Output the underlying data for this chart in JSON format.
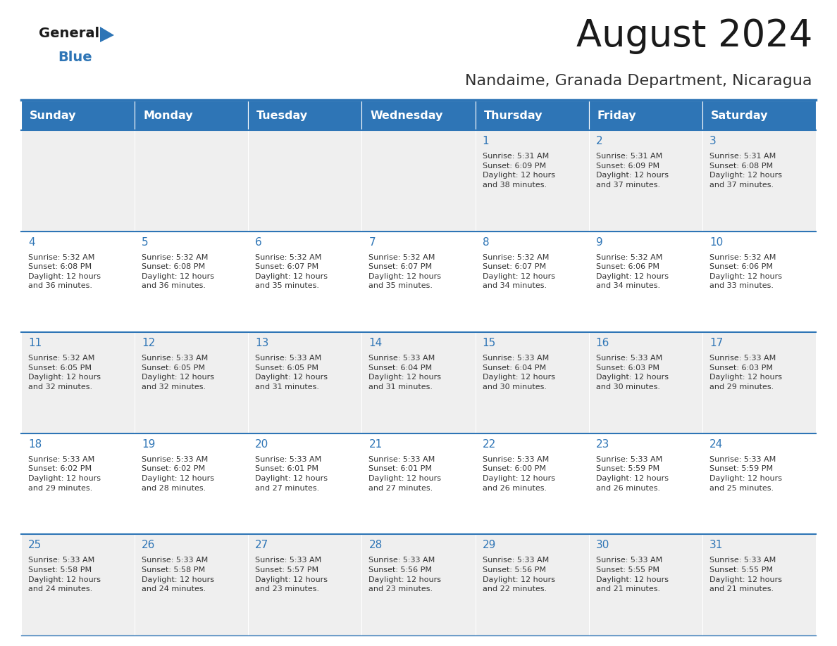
{
  "title": "August 2024",
  "subtitle": "Nandaime, Granada Department, Nicaragua",
  "header_bg_color": "#2E75B6",
  "header_text_color": "#FFFFFF",
  "day_names": [
    "Sunday",
    "Monday",
    "Tuesday",
    "Wednesday",
    "Thursday",
    "Friday",
    "Saturday"
  ],
  "row_odd_bg": "#EFEFEF",
  "row_even_bg": "#FFFFFF",
  "title_color": "#1a1a1a",
  "subtitle_color": "#333333",
  "day_number_color": "#2E75B6",
  "cell_text_color": "#333333",
  "separator_color": "#2E75B6",
  "logo_black": "#1a1a1a",
  "logo_blue": "#2E75B6",
  "logo_triangle": "#2E75B6",
  "calendar_data": [
    [
      null,
      null,
      null,
      null,
      {
        "day": 1,
        "sunrise": "5:31 AM",
        "sunset": "6:09 PM",
        "daylight": "12 hours and 38 minutes."
      },
      {
        "day": 2,
        "sunrise": "5:31 AM",
        "sunset": "6:09 PM",
        "daylight": "12 hours and 37 minutes."
      },
      {
        "day": 3,
        "sunrise": "5:31 AM",
        "sunset": "6:08 PM",
        "daylight": "12 hours and 37 minutes."
      }
    ],
    [
      {
        "day": 4,
        "sunrise": "5:32 AM",
        "sunset": "6:08 PM",
        "daylight": "12 hours and 36 minutes."
      },
      {
        "day": 5,
        "sunrise": "5:32 AM",
        "sunset": "6:08 PM",
        "daylight": "12 hours and 36 minutes."
      },
      {
        "day": 6,
        "sunrise": "5:32 AM",
        "sunset": "6:07 PM",
        "daylight": "12 hours and 35 minutes."
      },
      {
        "day": 7,
        "sunrise": "5:32 AM",
        "sunset": "6:07 PM",
        "daylight": "12 hours and 35 minutes."
      },
      {
        "day": 8,
        "sunrise": "5:32 AM",
        "sunset": "6:07 PM",
        "daylight": "12 hours and 34 minutes."
      },
      {
        "day": 9,
        "sunrise": "5:32 AM",
        "sunset": "6:06 PM",
        "daylight": "12 hours and 34 minutes."
      },
      {
        "day": 10,
        "sunrise": "5:32 AM",
        "sunset": "6:06 PM",
        "daylight": "12 hours and 33 minutes."
      }
    ],
    [
      {
        "day": 11,
        "sunrise": "5:32 AM",
        "sunset": "6:05 PM",
        "daylight": "12 hours and 32 minutes."
      },
      {
        "day": 12,
        "sunrise": "5:33 AM",
        "sunset": "6:05 PM",
        "daylight": "12 hours and 32 minutes."
      },
      {
        "day": 13,
        "sunrise": "5:33 AM",
        "sunset": "6:05 PM",
        "daylight": "12 hours and 31 minutes."
      },
      {
        "day": 14,
        "sunrise": "5:33 AM",
        "sunset": "6:04 PM",
        "daylight": "12 hours and 31 minutes."
      },
      {
        "day": 15,
        "sunrise": "5:33 AM",
        "sunset": "6:04 PM",
        "daylight": "12 hours and 30 minutes."
      },
      {
        "day": 16,
        "sunrise": "5:33 AM",
        "sunset": "6:03 PM",
        "daylight": "12 hours and 30 minutes."
      },
      {
        "day": 17,
        "sunrise": "5:33 AM",
        "sunset": "6:03 PM",
        "daylight": "12 hours and 29 minutes."
      }
    ],
    [
      {
        "day": 18,
        "sunrise": "5:33 AM",
        "sunset": "6:02 PM",
        "daylight": "12 hours and 29 minutes."
      },
      {
        "day": 19,
        "sunrise": "5:33 AM",
        "sunset": "6:02 PM",
        "daylight": "12 hours and 28 minutes."
      },
      {
        "day": 20,
        "sunrise": "5:33 AM",
        "sunset": "6:01 PM",
        "daylight": "12 hours and 27 minutes."
      },
      {
        "day": 21,
        "sunrise": "5:33 AM",
        "sunset": "6:01 PM",
        "daylight": "12 hours and 27 minutes."
      },
      {
        "day": 22,
        "sunrise": "5:33 AM",
        "sunset": "6:00 PM",
        "daylight": "12 hours and 26 minutes."
      },
      {
        "day": 23,
        "sunrise": "5:33 AM",
        "sunset": "5:59 PM",
        "daylight": "12 hours and 26 minutes."
      },
      {
        "day": 24,
        "sunrise": "5:33 AM",
        "sunset": "5:59 PM",
        "daylight": "12 hours and 25 minutes."
      }
    ],
    [
      {
        "day": 25,
        "sunrise": "5:33 AM",
        "sunset": "5:58 PM",
        "daylight": "12 hours and 24 minutes."
      },
      {
        "day": 26,
        "sunrise": "5:33 AM",
        "sunset": "5:58 PM",
        "daylight": "12 hours and 24 minutes."
      },
      {
        "day": 27,
        "sunrise": "5:33 AM",
        "sunset": "5:57 PM",
        "daylight": "12 hours and 23 minutes."
      },
      {
        "day": 28,
        "sunrise": "5:33 AM",
        "sunset": "5:56 PM",
        "daylight": "12 hours and 23 minutes."
      },
      {
        "day": 29,
        "sunrise": "5:33 AM",
        "sunset": "5:56 PM",
        "daylight": "12 hours and 22 minutes."
      },
      {
        "day": 30,
        "sunrise": "5:33 AM",
        "sunset": "5:55 PM",
        "daylight": "12 hours and 21 minutes."
      },
      {
        "day": 31,
        "sunrise": "5:33 AM",
        "sunset": "5:55 PM",
        "daylight": "12 hours and 21 minutes."
      }
    ]
  ]
}
